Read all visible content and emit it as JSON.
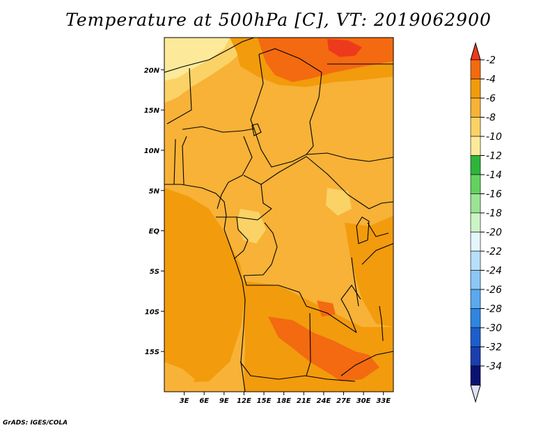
{
  "title": "Temperature at 500hPa [C], VT: 2019062900",
  "credit": "GrADS: IGES/COLA",
  "map": {
    "lon_range": [
      0,
      34.5
    ],
    "lat_range": [
      -20,
      24
    ],
    "lon_ticks": [
      {
        "value": 3,
        "label": "3E"
      },
      {
        "value": 6,
        "label": "6E"
      },
      {
        "value": 9,
        "label": "9E"
      },
      {
        "value": 12,
        "label": "12E"
      },
      {
        "value": 15,
        "label": "15E"
      },
      {
        "value": 18,
        "label": "18E"
      },
      {
        "value": 21,
        "label": "21E"
      },
      {
        "value": 24,
        "label": "24E"
      },
      {
        "value": 27,
        "label": "27E"
      },
      {
        "value": 30,
        "label": "30E"
      },
      {
        "value": 33,
        "label": "33E"
      }
    ],
    "lat_ticks": [
      {
        "value": 20,
        "label": "20N"
      },
      {
        "value": 15,
        "label": "15N"
      },
      {
        "value": 10,
        "label": "10N"
      },
      {
        "value": 5,
        "label": "5N"
      },
      {
        "value": 0,
        "label": "EQ"
      },
      {
        "value": -5,
        "label": "5S"
      },
      {
        "value": -10,
        "label": "10S"
      },
      {
        "value": -15,
        "label": "15S"
      }
    ],
    "colors": {
      "v_-8_-6": "#f7b237",
      "v_-6_-4": "#f29b0c",
      "v_-10_-8": "#fbd266",
      "v_-4_-2": "#f36a10",
      "v_-12_-10": "#fde99a"
    }
  },
  "colorbar": {
    "levels": [
      "-2",
      "-4",
      "-6",
      "-8",
      "-10",
      "-12",
      "-14",
      "-16",
      "-18",
      "-20",
      "-22",
      "-24",
      "-26",
      "-28",
      "-30",
      "-32",
      "-34"
    ],
    "colors": [
      "#ee3a1c",
      "#f36a10",
      "#f29b0c",
      "#f7b237",
      "#fbd266",
      "#fde99a",
      "#2eb53c",
      "#63d160",
      "#9ae493",
      "#cdf4c6",
      "#e4f6fc",
      "#b8defa",
      "#8dc7f6",
      "#5aa9ee",
      "#2f85e0",
      "#1d5dcc",
      "#1a3fae",
      "#0a1372",
      "#e0e0f4"
    ]
  }
}
